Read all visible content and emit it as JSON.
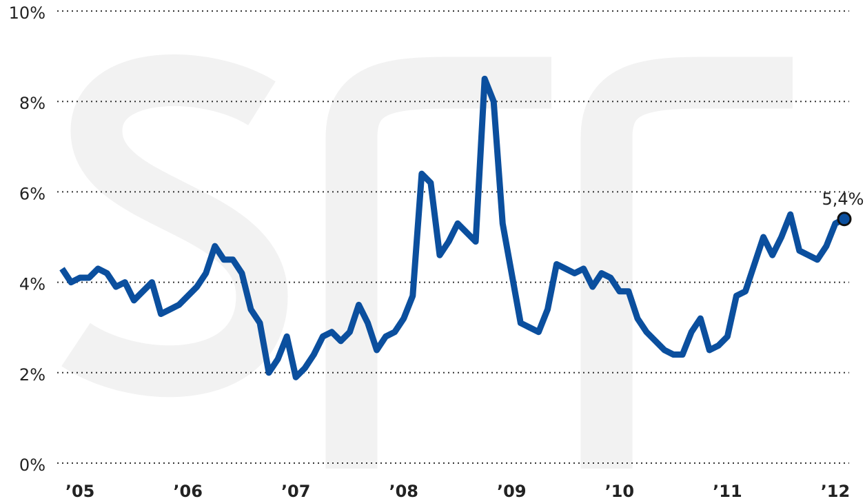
{
  "chart_data": {
    "type": "line",
    "categories": [
      null,
      null,
      "’05",
      null,
      null,
      null,
      null,
      null,
      null,
      null,
      null,
      null,
      null,
      null,
      "’06",
      null,
      null,
      null,
      null,
      null,
      null,
      null,
      null,
      null,
      null,
      null,
      "’07",
      null,
      null,
      null,
      null,
      null,
      null,
      null,
      null,
      null,
      null,
      null,
      "’08",
      null,
      null,
      null,
      null,
      null,
      null,
      null,
      null,
      null,
      null,
      null,
      "’09",
      null,
      null,
      null,
      null,
      null,
      null,
      null,
      null,
      null,
      null,
      null,
      "’10",
      null,
      null,
      null,
      null,
      null,
      null,
      null,
      null,
      null,
      null,
      null,
      "’11",
      null,
      null,
      null,
      null,
      null,
      null,
      null,
      null,
      null,
      null,
      null,
      "’12",
      null
    ],
    "values": [
      4.3,
      4.0,
      4.1,
      4.1,
      4.3,
      4.2,
      3.9,
      4.0,
      3.6,
      3.8,
      4.0,
      3.3,
      3.4,
      3.5,
      3.7,
      3.9,
      4.2,
      4.8,
      4.5,
      4.5,
      4.2,
      3.4,
      3.1,
      2.0,
      2.3,
      2.8,
      1.9,
      2.1,
      2.4,
      2.8,
      2.9,
      2.7,
      2.9,
      3.5,
      3.1,
      2.5,
      2.8,
      2.9,
      3.2,
      3.7,
      6.4,
      6.2,
      4.6,
      4.9,
      5.3,
      5.1,
      4.9,
      8.5,
      8.0,
      5.3,
      4.2,
      3.1,
      3.0,
      2.9,
      3.4,
      4.4,
      4.3,
      4.2,
      4.3,
      3.9,
      4.2,
      4.1,
      3.8,
      3.8,
      3.2,
      2.9,
      2.7,
      2.5,
      2.4,
      2.4,
      2.9,
      3.2,
      2.5,
      2.6,
      2.8,
      3.7,
      3.8,
      4.4,
      5.0,
      4.6,
      5.0,
      5.5,
      4.7,
      4.6,
      4.5,
      4.8,
      5.3,
      5.4
    ],
    "value_labels": [
      null,
      null,
      null,
      null,
      null,
      null,
      null,
      null,
      null,
      null,
      null,
      null,
      null,
      null,
      null,
      null,
      null,
      null,
      null,
      null,
      null,
      null,
      null,
      null,
      null,
      null,
      null,
      null,
      null,
      null,
      null,
      null,
      null,
      null,
      null,
      null,
      null,
      null,
      null,
      null,
      null,
      null,
      null,
      null,
      null,
      null,
      null,
      null,
      null,
      null,
      null,
      null,
      null,
      null,
      null,
      null,
      null,
      null,
      null,
      null,
      null,
      null,
      null,
      null,
      null,
      null,
      null,
      null,
      null,
      null,
      null,
      null,
      null,
      null,
      null,
      null,
      null,
      null,
      null,
      null,
      null,
      null,
      null,
      null,
      null,
      null,
      null,
      "5,4%"
    ],
    "color": "#0b4f9e",
    "ylim": [
      0,
      10
    ],
    "yticks": [
      {
        "value": 0,
        "label": "0%"
      },
      {
        "value": 2,
        "label": "2%"
      },
      {
        "value": 4,
        "label": "4%"
      },
      {
        "value": 6,
        "label": "6%"
      },
      {
        "value": 8,
        "label": "8%"
      },
      {
        "value": 10,
        "label": "10%"
      }
    ],
    "grid": true
  }
}
